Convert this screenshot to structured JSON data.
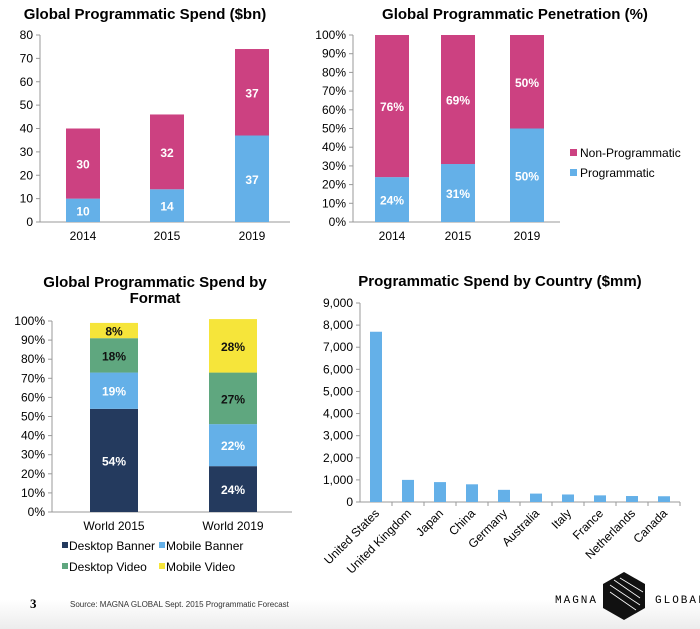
{
  "colors": {
    "non_programmatic": "#cc4181",
    "programmatic": "#64b0e8",
    "desktop_banner": "#243a5e",
    "mobile_banner": "#64b0e8",
    "desktop_video": "#5fa77f",
    "mobile_video": "#f6e53a"
  },
  "chart_data": [
    {
      "type": "bar",
      "stacked": true,
      "title": "Global Programmatic Spend ($bn)",
      "categories": [
        "2014",
        "2015",
        "2019"
      ],
      "series": [
        {
          "name": "Programmatic",
          "values": [
            10,
            14,
            37
          ]
        },
        {
          "name": "Non-Programmatic",
          "values": [
            30,
            32,
            37
          ]
        }
      ],
      "ylim": [
        0,
        80
      ],
      "yticks": [
        "0",
        "10",
        "20",
        "30",
        "40",
        "50",
        "60",
        "70",
        "80"
      ],
      "grid": false
    },
    {
      "type": "bar",
      "stacked": true,
      "title": "Global Programmatic Penetration (%)",
      "categories": [
        "2014",
        "2015",
        "2019"
      ],
      "series": [
        {
          "name": "Programmatic",
          "values": [
            24,
            31,
            50
          ],
          "labels": [
            "24%",
            "31%",
            "50%"
          ]
        },
        {
          "name": "Non-Programmatic",
          "values": [
            76,
            69,
            50
          ],
          "labels": [
            "76%",
            "69%",
            "50%"
          ]
        }
      ],
      "ylim": [
        0,
        100
      ],
      "yticks": [
        "0%",
        "10%",
        "20%",
        "30%",
        "40%",
        "50%",
        "60%",
        "70%",
        "80%",
        "90%",
        "100%"
      ],
      "legend": [
        "Non-Programmatic",
        "Programmatic"
      ],
      "legend_position": "right",
      "grid": false
    },
    {
      "type": "bar",
      "stacked": true,
      "title": [
        "Global Programmatic Spend by",
        "Format"
      ],
      "categories": [
        "World 2015",
        "World 2019"
      ],
      "series": [
        {
          "name": "Desktop Banner",
          "values": [
            54,
            24
          ],
          "labels": [
            "54%",
            "24%"
          ]
        },
        {
          "name": "Mobile Banner",
          "values": [
            19,
            22
          ],
          "labels": [
            "19%",
            "22%"
          ]
        },
        {
          "name": "Desktop Video",
          "values": [
            18,
            27
          ],
          "labels": [
            "18%",
            "27%"
          ]
        },
        {
          "name": "Mobile Video",
          "values": [
            8,
            28
          ],
          "labels": [
            "8%",
            "28%"
          ]
        }
      ],
      "ylim": [
        0,
        100
      ],
      "yticks": [
        "0%",
        "10%",
        "20%",
        "30%",
        "40%",
        "50%",
        "60%",
        "70%",
        "80%",
        "90%",
        "100%"
      ],
      "legend": [
        "Desktop Banner",
        "Mobile Banner",
        "Desktop Video",
        "Mobile Video"
      ],
      "legend_position": "bottom",
      "grid": false
    },
    {
      "type": "bar",
      "title": "Programmatic Spend by Country ($mm)",
      "categories": [
        "United States",
        "United Kingdom",
        "Japan",
        "China",
        "Germany",
        "Australia",
        "Italy",
        "France",
        "Netherlands",
        "Canada"
      ],
      "values": [
        7700,
        1000,
        900,
        800,
        550,
        380,
        340,
        300,
        270,
        260
      ],
      "ylim": [
        0,
        9000
      ],
      "yticks": [
        "0",
        "1,000",
        "2,000",
        "3,000",
        "4,000",
        "5,000",
        "6,000",
        "7,000",
        "8,000",
        "9,000"
      ],
      "grid": false
    }
  ],
  "footer": {
    "page_number": "3",
    "source": "Source: MAGNA GLOBAL Sept. 2015 Programmatic Forecast",
    "logo_left": "MAGNA",
    "logo_right": "GLOBAL"
  }
}
